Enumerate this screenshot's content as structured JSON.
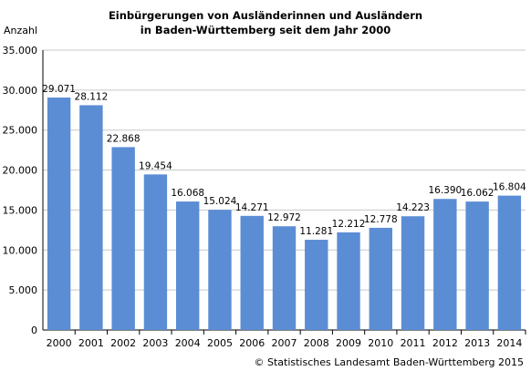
{
  "chart_data": {
    "type": "bar",
    "title": "Einbürgerungen von Ausländerinnen und Ausländern",
    "subtitle": "in Baden-Württemberg seit dem Jahr 2000",
    "ylabel": "Anzahl",
    "xlabel": "",
    "categories": [
      "2000",
      "2001",
      "2002",
      "2003",
      "2004",
      "2005",
      "2006",
      "2007",
      "2008",
      "2009",
      "2010",
      "2011",
      "2012",
      "2013",
      "2014"
    ],
    "values": [
      29071,
      28112,
      22868,
      19454,
      16068,
      15024,
      14271,
      12972,
      11281,
      12212,
      12778,
      14223,
      16390,
      16062,
      16804
    ],
    "value_labels": [
      "29.071",
      "28.112",
      "22.868",
      "19.454",
      "16.068",
      "15.024",
      "14.271",
      "12.972",
      "11.281",
      "12.212",
      "12.778",
      "14.223",
      "16.390",
      "16.062",
      "16.804"
    ],
    "yticks": [
      "0",
      "5.000",
      "10.000",
      "15.000",
      "20.000",
      "25.000",
      "30.000",
      "35.000"
    ],
    "ylim": [
      0,
      35000
    ],
    "grid": true,
    "bar_color": "#5b8dd4",
    "source": "© Statistisches Landesamt Baden-Württemberg 2015"
  }
}
